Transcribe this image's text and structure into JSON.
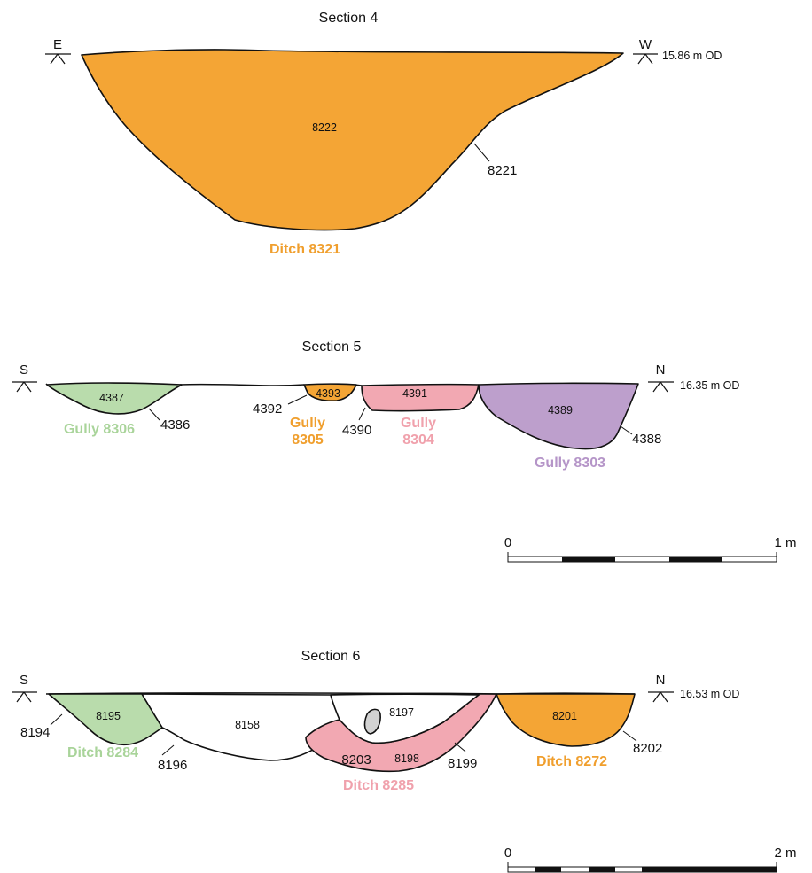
{
  "colors": {
    "orange": "#F4A535",
    "green": "#B9DCAC",
    "pink": "#F2A8B2",
    "purple": "#BD9FCC",
    "orange_text": "#F09F2E",
    "green_text": "#A9D49A",
    "pink_text": "#F0A1AC",
    "purple_text": "#B595C8",
    "stone": "#D2D2D2"
  },
  "section4": {
    "title": "Section 4",
    "left_dir": "E",
    "right_dir": "W",
    "datum": "15.86 m OD",
    "fill_label": "8222",
    "cut_label": "8221",
    "feature": "Ditch 8321"
  },
  "section5": {
    "title": "Section 5",
    "left_dir": "S",
    "right_dir": "N",
    "datum": "16.35 m OD",
    "gully_8306": {
      "fill": "4387",
      "cut": "4386",
      "feature": "Gully 8306"
    },
    "gully_8305": {
      "fill": "4393",
      "cut": "4392",
      "feature_line1": "Gully",
      "feature_line2": "8305"
    },
    "gully_8304": {
      "fill": "4391",
      "cut": "4390",
      "feature_line1": "Gully",
      "feature_line2": "8304"
    },
    "gully_8303": {
      "fill": "4389",
      "cut": "4388",
      "feature": "Gully 8303"
    }
  },
  "scale1": {
    "start": "0",
    "end": "1 m"
  },
  "section6": {
    "title": "Section 6",
    "left_dir": "S",
    "right_dir": "N",
    "datum": "16.53 m OD",
    "ditch_8284": {
      "fill": "8195",
      "cut": "8194",
      "feature": "Ditch 8284"
    },
    "ditch_8158": {
      "fill": "8158",
      "cut": "8196"
    },
    "ditch_8285": {
      "upper_fill": "8197",
      "fill_a": "8203",
      "fill_b": "8198",
      "cut": "8199",
      "feature": "Ditch 8285"
    },
    "ditch_8272": {
      "fill": "8201",
      "cut": "8202",
      "feature": "Ditch 8272"
    }
  },
  "scale2": {
    "start": "0",
    "end": "2 m"
  }
}
